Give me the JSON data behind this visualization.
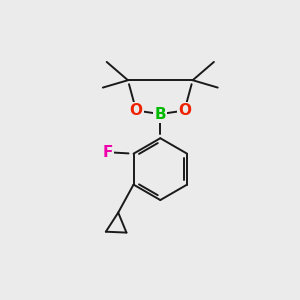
{
  "bg_color": "#ebebeb",
  "bond_color": "#1a1a1a",
  "bond_width": 1.4,
  "atom_colors": {
    "B": "#00bb00",
    "O": "#ee2200",
    "F": "#ee00aa",
    "C": "#1a1a1a"
  },
  "figsize": [
    3.0,
    3.0
  ],
  "dpi": 100
}
